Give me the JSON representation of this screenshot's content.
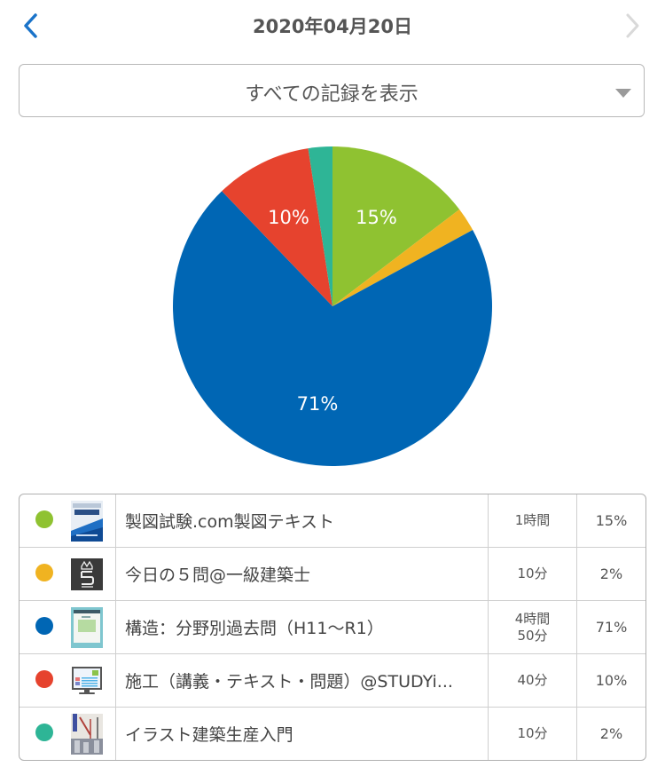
{
  "header": {
    "title": "2020年04月20日",
    "prev_icon": "chevron-left-icon",
    "next_icon": "chevron-right-icon"
  },
  "filter": {
    "selected": "すべての記録を表示",
    "caret_icon": "triangle-down-icon"
  },
  "colors": {
    "accent": "#1a73c9",
    "green": "#8fc231",
    "orange": "#f0b321",
    "blue": "#0066b4",
    "red": "#e6432e",
    "teal": "#2eb596"
  },
  "chart_data": {
    "type": "pie",
    "title": "",
    "start_angle": "top, clockwise",
    "categories": [
      "製図試験.com製図テキスト",
      "今日の５問@一級建築士",
      "構造：分野別過去問（H11〜R1）",
      "施工（講義・テキスト・問題）@STUDYi...",
      "イラスト建築生産入門"
    ],
    "values_minutes": [
      60,
      10,
      290,
      40,
      10
    ],
    "percent": [
      15,
      2,
      71,
      10,
      2
    ],
    "colors": [
      "#8fc231",
      "#f0b321",
      "#0066b4",
      "#e6432e",
      "#2eb596"
    ],
    "slice_labels": [
      "15%",
      "",
      "71%",
      "10%",
      ""
    ],
    "legend_position": "table below"
  },
  "legend": {
    "rows": [
      {
        "name": "製図試験.com製図テキスト",
        "time": "1時間",
        "time2": "",
        "percent": "15%",
        "color": "#8fc231",
        "icon": "book-cover-esquisse-icon"
      },
      {
        "name": "今日の５問@一級建築士",
        "time": "10分",
        "time2": "",
        "percent": "2%",
        "color": "#f0b321",
        "icon": "crown-five-app-icon"
      },
      {
        "name": "構造：分野別過去問（H11〜R1）",
        "time": "4時間",
        "time2": "50分",
        "percent": "71%",
        "color": "#0066b4",
        "icon": "web-page-thumbnail-icon"
      },
      {
        "name": "施工（講義・テキスト・問題）@STUDYi...",
        "time": "40分",
        "time2": "",
        "percent": "10%",
        "color": "#e6432e",
        "icon": "monitor-icon"
      },
      {
        "name": "イラスト建築生産入門",
        "time": "10分",
        "time2": "",
        "percent": "2%",
        "color": "#2eb596",
        "icon": "construction-book-cover-icon"
      }
    ]
  }
}
